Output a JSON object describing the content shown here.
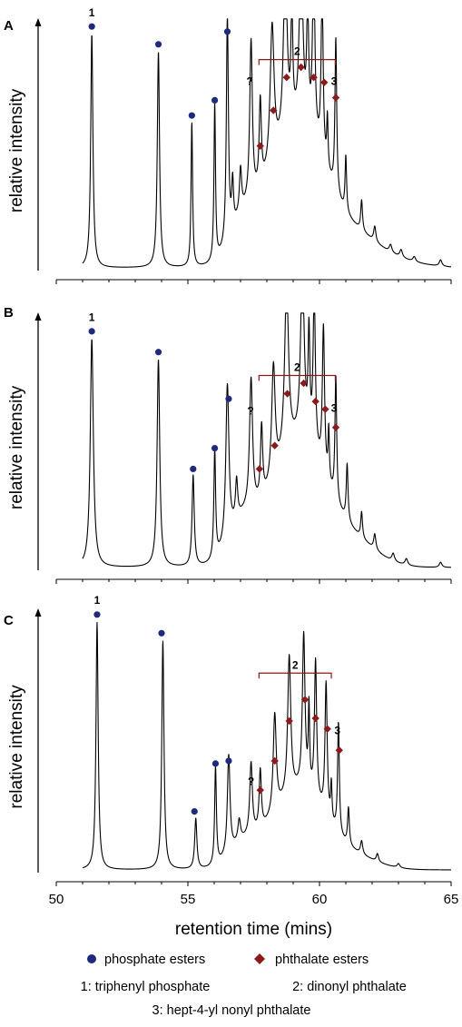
{
  "chart_data": {
    "type": "line",
    "xlabel": "retention time (mins)",
    "ylabel": "relative intensity",
    "xlim": [
      50,
      65
    ],
    "xticks": [
      50,
      55,
      60,
      65
    ],
    "series_legend": [
      {
        "name": "phosphate esters",
        "marker": "circle",
        "color": "#1f2a7c"
      },
      {
        "name": "phthalate esters",
        "marker": "diamond",
        "color": "#8b1a1a"
      }
    ],
    "annotations": [
      "1: triphenyl phosphate",
      "2: dinonyl phthalate",
      "3: hept-4-yl nonyl phthalate"
    ],
    "bracket_label": "2",
    "unknown_label": "?",
    "peak_label_1": "1",
    "peak_label_3": "3",
    "panels": [
      {
        "label": "A",
        "baseline": 0.01,
        "bracket": [
          57.7,
          60.6,
          0.83
        ],
        "peaks": [
          [
            51.35,
            0.92,
            0.05
          ],
          [
            53.88,
            0.85,
            0.05
          ],
          [
            55.15,
            0.57,
            0.035
          ],
          [
            56.02,
            0.62,
            0.035
          ],
          [
            56.5,
            0.9,
            0.045
          ],
          [
            56.7,
            0.18,
            0.04
          ],
          [
            57.0,
            0.17,
            0.05
          ],
          [
            57.4,
            0.63,
            0.06
          ],
          [
            57.75,
            0.34,
            0.05
          ],
          [
            58.2,
            0.55,
            0.09
          ],
          [
            58.7,
            0.7,
            0.08
          ],
          [
            58.95,
            0.45,
            0.04
          ],
          [
            59.3,
            0.77,
            0.07
          ],
          [
            59.55,
            0.48,
            0.04
          ],
          [
            59.78,
            0.72,
            0.05
          ],
          [
            60.1,
            0.68,
            0.045
          ],
          [
            60.3,
            0.2,
            0.03
          ],
          [
            60.62,
            0.61,
            0.04
          ],
          [
            61.0,
            0.22,
            0.035
          ],
          [
            61.6,
            0.12,
            0.04
          ],
          [
            62.1,
            0.06,
            0.05
          ],
          [
            62.7,
            0.03,
            0.06
          ],
          [
            63.1,
            0.03,
            0.06
          ],
          [
            63.6,
            0.02,
            0.06
          ],
          [
            64.6,
            0.025,
            0.06
          ]
        ],
        "background": [
          [
            57.0,
            0.1,
            0.45
          ],
          [
            58.3,
            0.28,
            0.9
          ],
          [
            59.5,
            0.38,
            0.8
          ],
          [
            61.0,
            0.13,
            1.0
          ],
          [
            62.5,
            0.03,
            1.2
          ]
        ],
        "phosphate_markers": [
          [
            51.35,
            0.96
          ],
          [
            53.88,
            0.89
          ],
          [
            55.15,
            0.61
          ],
          [
            56.02,
            0.67
          ],
          [
            56.5,
            0.94
          ]
        ],
        "phthalate_markers": [
          [
            57.75,
            0.49
          ],
          [
            58.25,
            0.63
          ],
          [
            58.75,
            0.76
          ],
          [
            59.3,
            0.8
          ],
          [
            59.78,
            0.76
          ],
          [
            60.18,
            0.74
          ],
          [
            60.62,
            0.68
          ]
        ],
        "unknown_marker": [
          57.35,
          0.73
        ],
        "label1": [
          51.35,
          1.0
        ],
        "label3": [
          60.55,
          0.73
        ]
      },
      {
        "label": "B",
        "baseline": 0.01,
        "bracket": [
          57.7,
          60.6,
          0.75
        ],
        "peaks": [
          [
            51.35,
            0.88,
            0.07
          ],
          [
            53.88,
            0.8,
            0.06
          ],
          [
            55.2,
            0.35,
            0.05
          ],
          [
            56.02,
            0.42,
            0.04
          ],
          [
            56.5,
            0.6,
            0.07
          ],
          [
            56.85,
            0.15,
            0.05
          ],
          [
            57.4,
            0.5,
            0.07
          ],
          [
            57.8,
            0.28,
            0.05
          ],
          [
            58.25,
            0.44,
            0.08
          ],
          [
            58.75,
            0.65,
            0.09
          ],
          [
            59.35,
            0.68,
            0.08
          ],
          [
            59.6,
            0.4,
            0.04
          ],
          [
            59.8,
            0.61,
            0.05
          ],
          [
            60.15,
            0.56,
            0.05
          ],
          [
            60.35,
            0.2,
            0.03
          ],
          [
            60.62,
            0.48,
            0.04
          ],
          [
            61.05,
            0.22,
            0.04
          ],
          [
            61.6,
            0.1,
            0.04
          ],
          [
            62.1,
            0.06,
            0.05
          ],
          [
            62.8,
            0.03,
            0.06
          ],
          [
            63.3,
            0.025,
            0.06
          ],
          [
            64.6,
            0.02,
            0.06
          ]
        ],
        "background": [
          [
            57.0,
            0.12,
            0.5
          ],
          [
            58.4,
            0.22,
            0.9
          ],
          [
            59.5,
            0.32,
            0.8
          ],
          [
            61.0,
            0.12,
            1.0
          ]
        ],
        "phosphate_markers": [
          [
            51.35,
            0.92
          ],
          [
            53.88,
            0.84
          ],
          [
            55.2,
            0.39
          ],
          [
            56.02,
            0.47
          ],
          [
            56.55,
            0.66
          ]
        ],
        "phthalate_markers": [
          [
            57.72,
            0.39
          ],
          [
            58.3,
            0.48
          ],
          [
            58.78,
            0.68
          ],
          [
            59.4,
            0.72
          ],
          [
            59.85,
            0.65
          ],
          [
            60.22,
            0.62
          ],
          [
            60.62,
            0.55
          ]
        ],
        "unknown_marker": [
          57.38,
          0.6
        ],
        "label1": [
          51.35,
          0.96
        ],
        "label3": [
          60.55,
          0.61
        ]
      },
      {
        "label": "C",
        "baseline": 0.01,
        "bracket": [
          57.7,
          60.45,
          0.75
        ],
        "peaks": [
          [
            51.55,
            0.93,
            0.05
          ],
          [
            54.05,
            0.86,
            0.05
          ],
          [
            55.3,
            0.19,
            0.05
          ],
          [
            56.05,
            0.37,
            0.04
          ],
          [
            56.55,
            0.37,
            0.06
          ],
          [
            56.95,
            0.08,
            0.06
          ],
          [
            57.4,
            0.27,
            0.06
          ],
          [
            57.75,
            0.22,
            0.05
          ],
          [
            58.3,
            0.37,
            0.07
          ],
          [
            58.85,
            0.52,
            0.07
          ],
          [
            59.4,
            0.58,
            0.06
          ],
          [
            59.6,
            0.3,
            0.03
          ],
          [
            59.85,
            0.52,
            0.05
          ],
          [
            60.25,
            0.5,
            0.05
          ],
          [
            60.45,
            0.14,
            0.03
          ],
          [
            60.72,
            0.42,
            0.04
          ],
          [
            61.1,
            0.14,
            0.04
          ],
          [
            61.6,
            0.05,
            0.05
          ],
          [
            62.2,
            0.03,
            0.05
          ],
          [
            63.0,
            0.015,
            0.06
          ]
        ],
        "background": [
          [
            57.0,
            0.06,
            0.5
          ],
          [
            58.4,
            0.14,
            0.9
          ],
          [
            59.5,
            0.2,
            0.8
          ],
          [
            61.0,
            0.06,
            1.0
          ]
        ],
        "phosphate_markers": [
          [
            51.55,
            0.97
          ],
          [
            54.0,
            0.9
          ],
          [
            55.25,
            0.23
          ],
          [
            56.05,
            0.41
          ],
          [
            56.55,
            0.42
          ]
        ],
        "phthalate_markers": [
          [
            57.75,
            0.31
          ],
          [
            58.3,
            0.42
          ],
          [
            58.85,
            0.57
          ],
          [
            59.45,
            0.65
          ],
          [
            59.85,
            0.58
          ],
          [
            60.3,
            0.54
          ],
          [
            60.75,
            0.46
          ]
        ],
        "unknown_marker": [
          57.4,
          0.33
        ],
        "label1": [
          51.55,
          1.01
        ],
        "label3": [
          60.68,
          0.52
        ]
      }
    ]
  }
}
